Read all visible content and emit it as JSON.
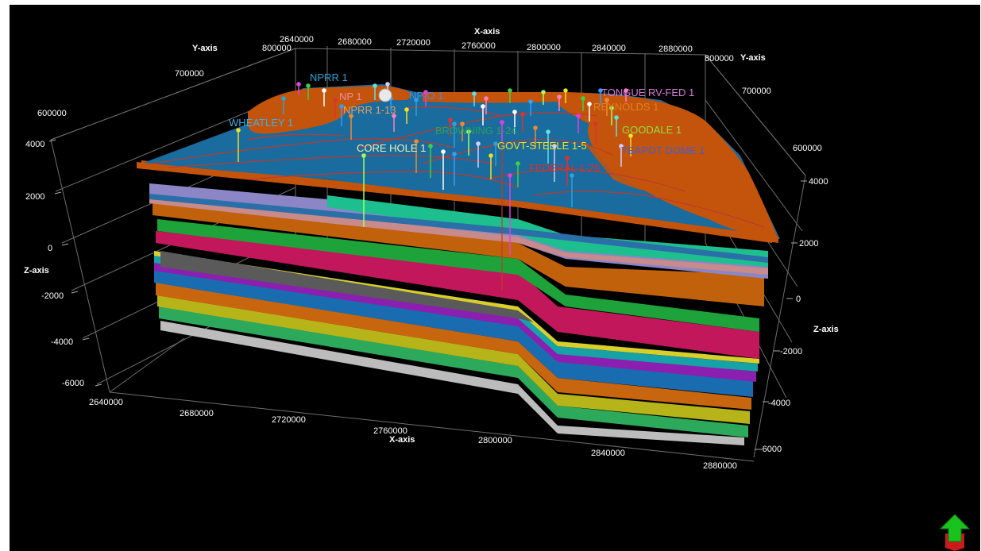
{
  "axes": {
    "x_title": "X-axis",
    "y_title": "Y-axis",
    "z_title": "Z-axis",
    "x_top_ticks": [
      "2640000",
      "2680000",
      "2720000",
      "2760000",
      "2800000",
      "2840000",
      "2880000"
    ],
    "x_bottom_ticks": [
      "2640000",
      "2680000",
      "2720000",
      "2760000",
      "2800000",
      "2840000",
      "2880000"
    ],
    "y_left_ticks": [
      "800000",
      "700000",
      "600000"
    ],
    "y_right_ticks": [
      "800000",
      "700000",
      "600000"
    ],
    "z_left_ticks": [
      "4000",
      "2000",
      "0",
      "-2000",
      "-4000",
      "-6000"
    ],
    "z_right_ticks": [
      "4000",
      "2000",
      "0",
      "-2000",
      "-4000",
      "-6000"
    ]
  },
  "wells": {
    "nprr1": "NPRR 1",
    "np1": "NP 1",
    "nprr113": "NPRR 1-13",
    "wheatley1": "WHEATLEY 1",
    "corehole1": "CORE HOLE 1",
    "browning": "BROWNING 1-24",
    "govtsteele": "GOVT-STEELE 1-5",
    "tongue": "TONGUE RV-FED 1",
    "goodale": "GOODALE 1",
    "npo1": "NP-O 1",
    "federal": "FEDERAL 1-26",
    "teapot": "TEAPOT DOME 1",
    "reynolds": "REYNOLDS 1"
  },
  "colors": {
    "background": "#000000",
    "top_surface": "#1a6b9e",
    "outcrop": "#c4540c",
    "fault_line": "#c0392b"
  },
  "icons": {
    "nav": "navigation-arrow-icon"
  }
}
